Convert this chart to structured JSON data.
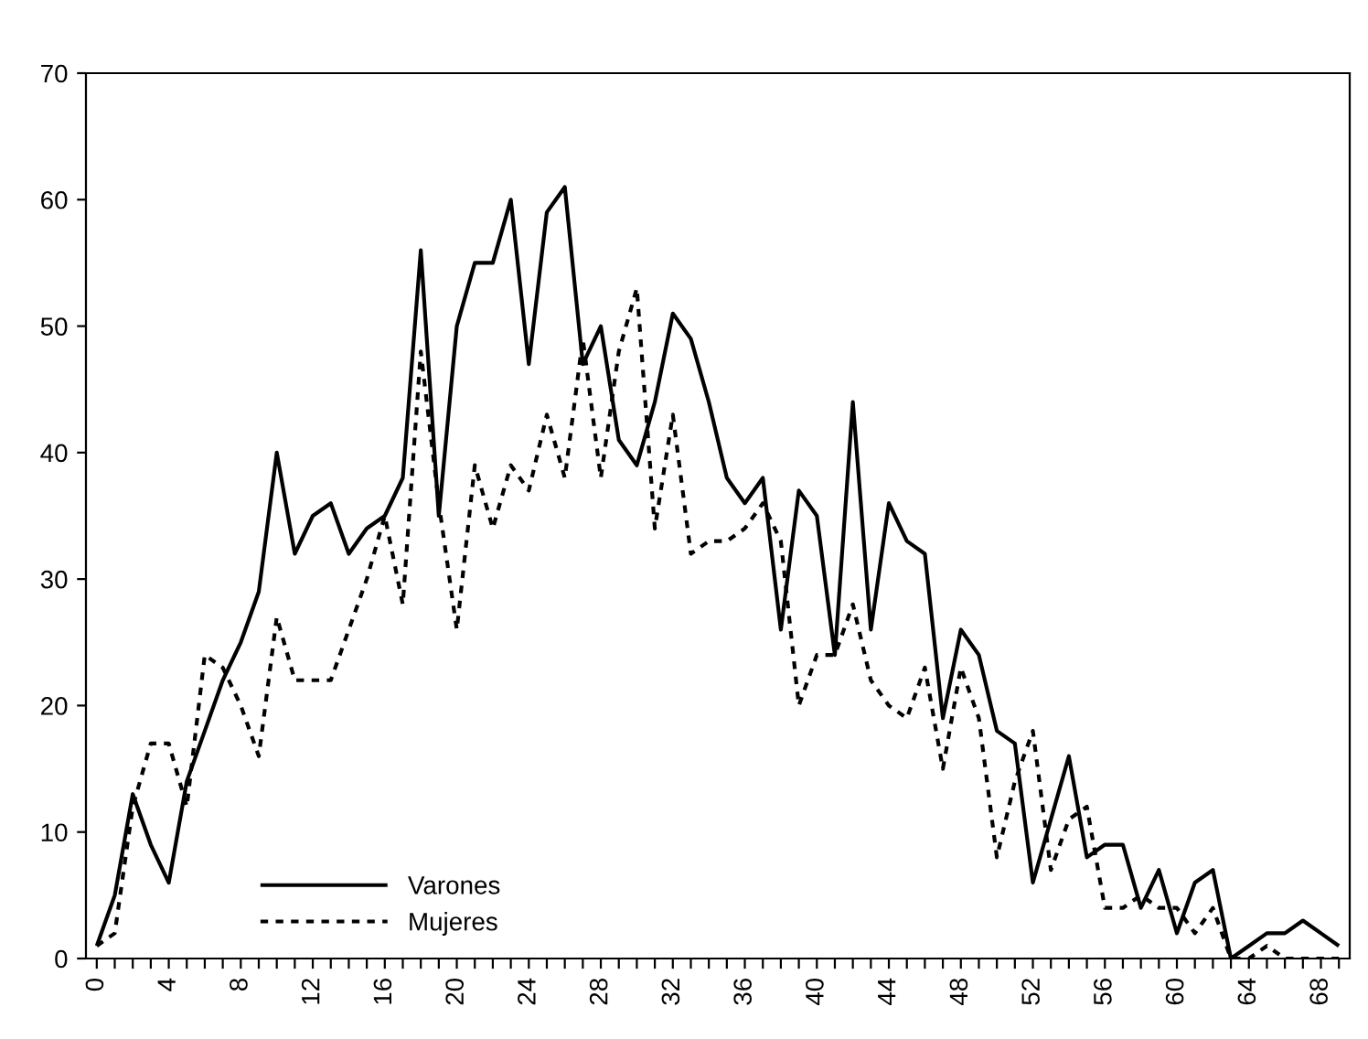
{
  "chart_data": {
    "type": "line",
    "categories": [
      "0",
      null,
      null,
      null,
      "4",
      null,
      null,
      null,
      "8",
      null,
      null,
      null,
      "12",
      null,
      null,
      null,
      "16",
      null,
      null,
      null,
      "20",
      null,
      null,
      null,
      "24",
      null,
      null,
      null,
      "28",
      null,
      null,
      null,
      "32",
      null,
      null,
      null,
      "36",
      null,
      null,
      null,
      "40",
      null,
      null,
      null,
      "44",
      null,
      null,
      null,
      "48",
      null,
      null,
      null,
      "52",
      null,
      null,
      null,
      "56",
      null,
      null,
      null,
      "60",
      null,
      null,
      null,
      "64",
      null,
      null,
      null,
      "68",
      null
    ],
    "series": [
      {
        "name": "Varones",
        "color": "#000000",
        "line_style": "solid",
        "values": [
          1,
          5,
          13,
          9,
          6,
          14,
          18,
          22,
          25,
          29,
          40,
          32,
          35,
          36,
          32,
          34,
          35,
          38,
          56,
          35,
          50,
          55,
          55,
          60,
          47,
          59,
          61,
          47,
          50,
          41,
          39,
          44,
          51,
          49,
          44,
          38,
          36,
          38,
          26,
          37,
          35,
          24,
          44,
          26,
          36,
          33,
          32,
          19,
          26,
          24,
          18,
          17,
          6,
          11,
          16,
          8,
          9,
          9,
          4,
          7,
          2,
          6,
          7,
          0,
          1,
          2,
          2,
          3,
          2,
          1
        ]
      },
      {
        "name": "Mujeres",
        "color": "#000000",
        "line_style": "dotted",
        "values": [
          1,
          2,
          12,
          17,
          17,
          12,
          24,
          23,
          20,
          16,
          27,
          22,
          22,
          22,
          26,
          30,
          35,
          28,
          48,
          36,
          26,
          39,
          34,
          39,
          37,
          43,
          38,
          49,
          38,
          48,
          53,
          34,
          43,
          32,
          33,
          33,
          34,
          36,
          33,
          20,
          24,
          24,
          28,
          22,
          20,
          19,
          23,
          15,
          23,
          19,
          8,
          14,
          18,
          7,
          11,
          12,
          4,
          4,
          5,
          4,
          4,
          2,
          4,
          0,
          0,
          1,
          0,
          0,
          0,
          0
        ]
      }
    ],
    "ylim": [
      0,
      70
    ],
    "yticks": [
      0,
      10,
      20,
      30,
      40,
      50,
      60,
      70
    ],
    "grid": false,
    "legend": "bottom left",
    "marker": "none"
  }
}
